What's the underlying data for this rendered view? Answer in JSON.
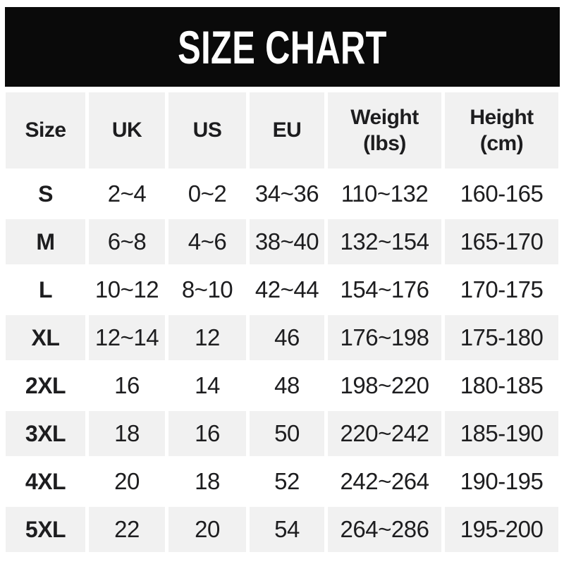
{
  "banner": {
    "title": "SIZE CHART"
  },
  "table": {
    "header_labels": [
      "Size",
      "UK",
      "US",
      "EU",
      "Weight\n(lbs)",
      "Height\n(cm)"
    ]
  },
  "chart_data": {
    "type": "table",
    "title": "SIZE CHART",
    "columns": [
      "Size",
      "UK",
      "US",
      "EU",
      "Weight (lbs)",
      "Height (cm)"
    ],
    "rows": [
      [
        "S",
        "2~4",
        "0~2",
        "34~36",
        "110~132",
        "160-165"
      ],
      [
        "M",
        "6~8",
        "4~6",
        "38~40",
        "132~154",
        "165-170"
      ],
      [
        "L",
        "10~12",
        "8~10",
        "42~44",
        "154~176",
        "170-175"
      ],
      [
        "XL",
        "12~14",
        "12",
        "46",
        "176~198",
        "175-180"
      ],
      [
        "2XL",
        "16",
        "14",
        "48",
        "198~220",
        "180-185"
      ],
      [
        "3XL",
        "18",
        "16",
        "50",
        "220~242",
        "185-190"
      ],
      [
        "4XL",
        "20",
        "18",
        "52",
        "242~264",
        "190-195"
      ],
      [
        "5XL",
        "22",
        "20",
        "54",
        "264~286",
        "195-200"
      ]
    ],
    "units": {
      "weight": "lbs",
      "height": "cm"
    },
    "layout": {
      "row_alternating_shading": true,
      "shaded": "header and every 2nd data row (M, XL, 3XL, 5XL)",
      "legend_position": "none",
      "grid": "white gaps between cells"
    }
  },
  "colors": {
    "banner_bg": "#0a0a0a",
    "banner_text": "#ffffff",
    "row_shade": "#f1f1f1",
    "row_plain": "#ffffff",
    "cell_text": "#1d1d1f"
  }
}
